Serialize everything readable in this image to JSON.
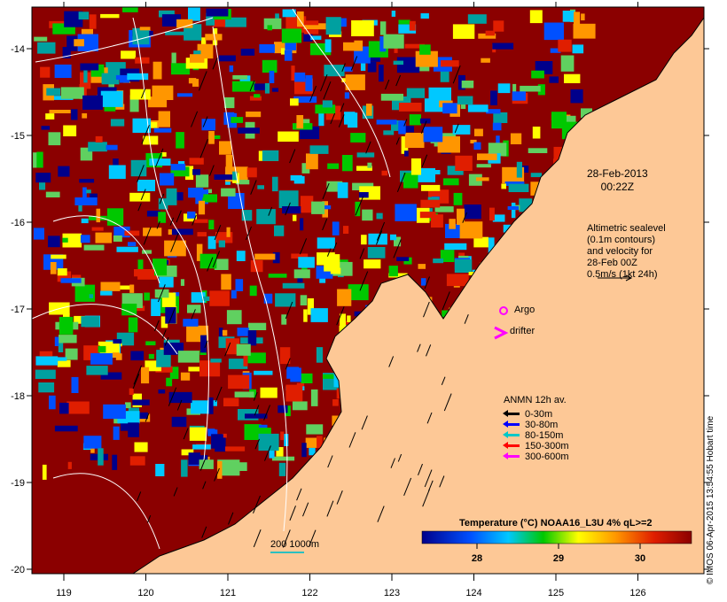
{
  "map": {
    "date_line1": "28-Feb-2013",
    "date_line2": "00:22Z",
    "altimetry_note": [
      "Altimetric sealevel",
      "(0.1m contours)",
      "and velocity for",
      "28-Feb 00Z",
      "0.5m/s (1kt 24h)"
    ],
    "argo_label": "Argo",
    "drifter_label": "drifter",
    "anmn_title": "ANMN 12h av.",
    "anmn_depths": [
      {
        "label": "0-30m",
        "color": "#000000"
      },
      {
        "label": "30-80m",
        "color": "#0000ff"
      },
      {
        "label": "80-150m",
        "color": "#00c8c8"
      },
      {
        "label": "150-300m",
        "color": "#ff0000"
      },
      {
        "label": "300-600m",
        "color": "#ff00ff"
      }
    ],
    "scale_label": "200  1000m",
    "colorbar_title": "Temperature (°C) NOAA16_L3U 4% qL>=2",
    "colorbar_ticks": [
      "28",
      "29",
      "30"
    ],
    "credit": "© IMOS 06-Apr-2015 13:54:55 Hobart time",
    "x_ticks": [
      "119",
      "120",
      "121",
      "122",
      "123",
      "124",
      "125",
      "126"
    ],
    "y_ticks": [
      "-14",
      "-15",
      "-16",
      "-17",
      "-18",
      "-19",
      "-20"
    ],
    "colors": {
      "land": "#fdc896",
      "sst_hot": "#8b0000",
      "contour": "#ffffff",
      "argo": "#ff00ff"
    }
  }
}
